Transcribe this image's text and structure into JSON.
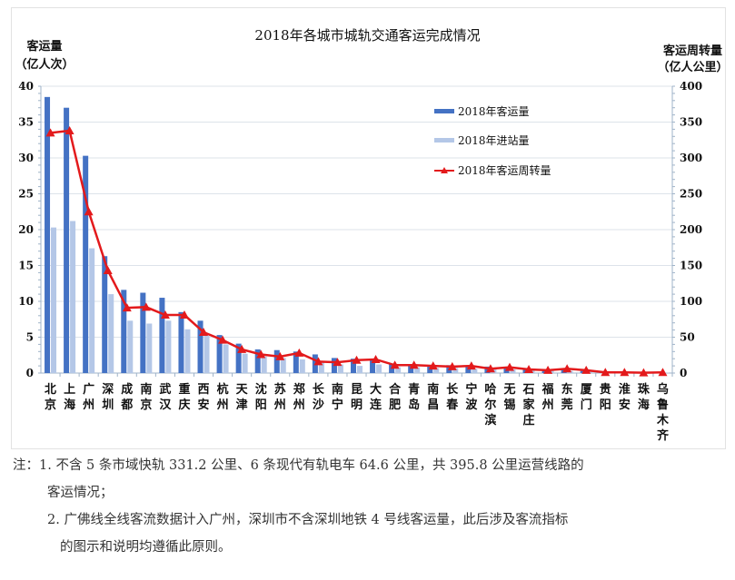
{
  "chart_data": {
    "type": "bar",
    "title": "2018年各城市城轨交通客运完成情况",
    "ylabel": "客运量（亿人次）",
    "ylabel2": "客运周转量（亿人公里）",
    "ylim": [
      0,
      40
    ],
    "ylim2": [
      0,
      400
    ],
    "yticks": [
      0,
      5,
      10,
      15,
      20,
      25,
      30,
      35,
      40
    ],
    "yticks2": [
      0,
      50,
      100,
      150,
      200,
      250,
      300,
      350,
      400
    ],
    "grid": true,
    "legend_position": "upper-center",
    "categories": [
      "北京",
      "上海",
      "广州",
      "深圳",
      "成都",
      "南京",
      "武汉",
      "重庆",
      "西安",
      "杭州",
      "天津",
      "沈阳",
      "苏州",
      "郑州",
      "长沙",
      "南宁",
      "昆明",
      "大连",
      "合肥",
      "青岛",
      "南昌",
      "长春",
      "宁波",
      "哈尔滨",
      "无锡",
      "石家庄",
      "福州",
      "东莞",
      "厦门",
      "贵阳",
      "淮安",
      "珠海",
      "乌鲁木齐"
    ],
    "series": [
      {
        "name": "2018年客运量",
        "type": "bar",
        "axis": "left",
        "color": "#4472c4",
        "values": [
          38.5,
          37.0,
          30.3,
          16.3,
          11.6,
          11.2,
          10.5,
          8.5,
          7.3,
          5.3,
          4.1,
          3.3,
          3.2,
          3.0,
          2.6,
          2.1,
          2.0,
          1.8,
          1.3,
          1.2,
          1.1,
          1.1,
          1.0,
          0.9,
          0.8,
          0.7,
          0.5,
          0.5,
          0.3,
          0.2,
          0.1,
          0.05,
          0.1
        ]
      },
      {
        "name": "2018年进站量",
        "type": "bar",
        "axis": "left",
        "color": "#b4c7e7",
        "values": [
          20.3,
          21.2,
          17.4,
          11.0,
          7.3,
          6.9,
          7.3,
          6.1,
          5.2,
          4.0,
          2.7,
          2.3,
          2.1,
          1.9,
          1.5,
          1.2,
          1.0,
          1.2,
          0.8,
          0.8,
          0.7,
          0.7,
          0.6,
          0.6,
          0.5,
          0.4,
          0.3,
          0.3,
          0.2,
          0.1,
          0.1,
          0.03,
          0.05
        ]
      },
      {
        "name": "2018年客运周转量",
        "type": "line",
        "axis": "right",
        "color": "#e31a1c",
        "marker": "triangle",
        "values": [
          335,
          338,
          225,
          143,
          91,
          92,
          81,
          81,
          57,
          46,
          33,
          26,
          23,
          28,
          16,
          15,
          18,
          19,
          11,
          11,
          10,
          9,
          10,
          6,
          8,
          5,
          4,
          6,
          4,
          1,
          1,
          0.5,
          1
        ]
      }
    ]
  },
  "notes": {
    "line1": "注：1. 不含 5 条市域快轨 331.2 公里、6 条现代有轨电车 64.6 公里，共 395.8 公里运营线路的",
    "line2": "客运情况；",
    "line3": "2. 广佛线全线客流数据计入广州，深圳市不含深圳地铁 4 号线客运量，此后涉及客流指标",
    "line4": "的图示和说明均遵循此原则。"
  },
  "ylabel_left": {
    "line1": "客运量",
    "line2": "（亿人次）"
  },
  "ylabel_right": {
    "line1": "客运周转量",
    "line2": "（亿人公里）"
  }
}
